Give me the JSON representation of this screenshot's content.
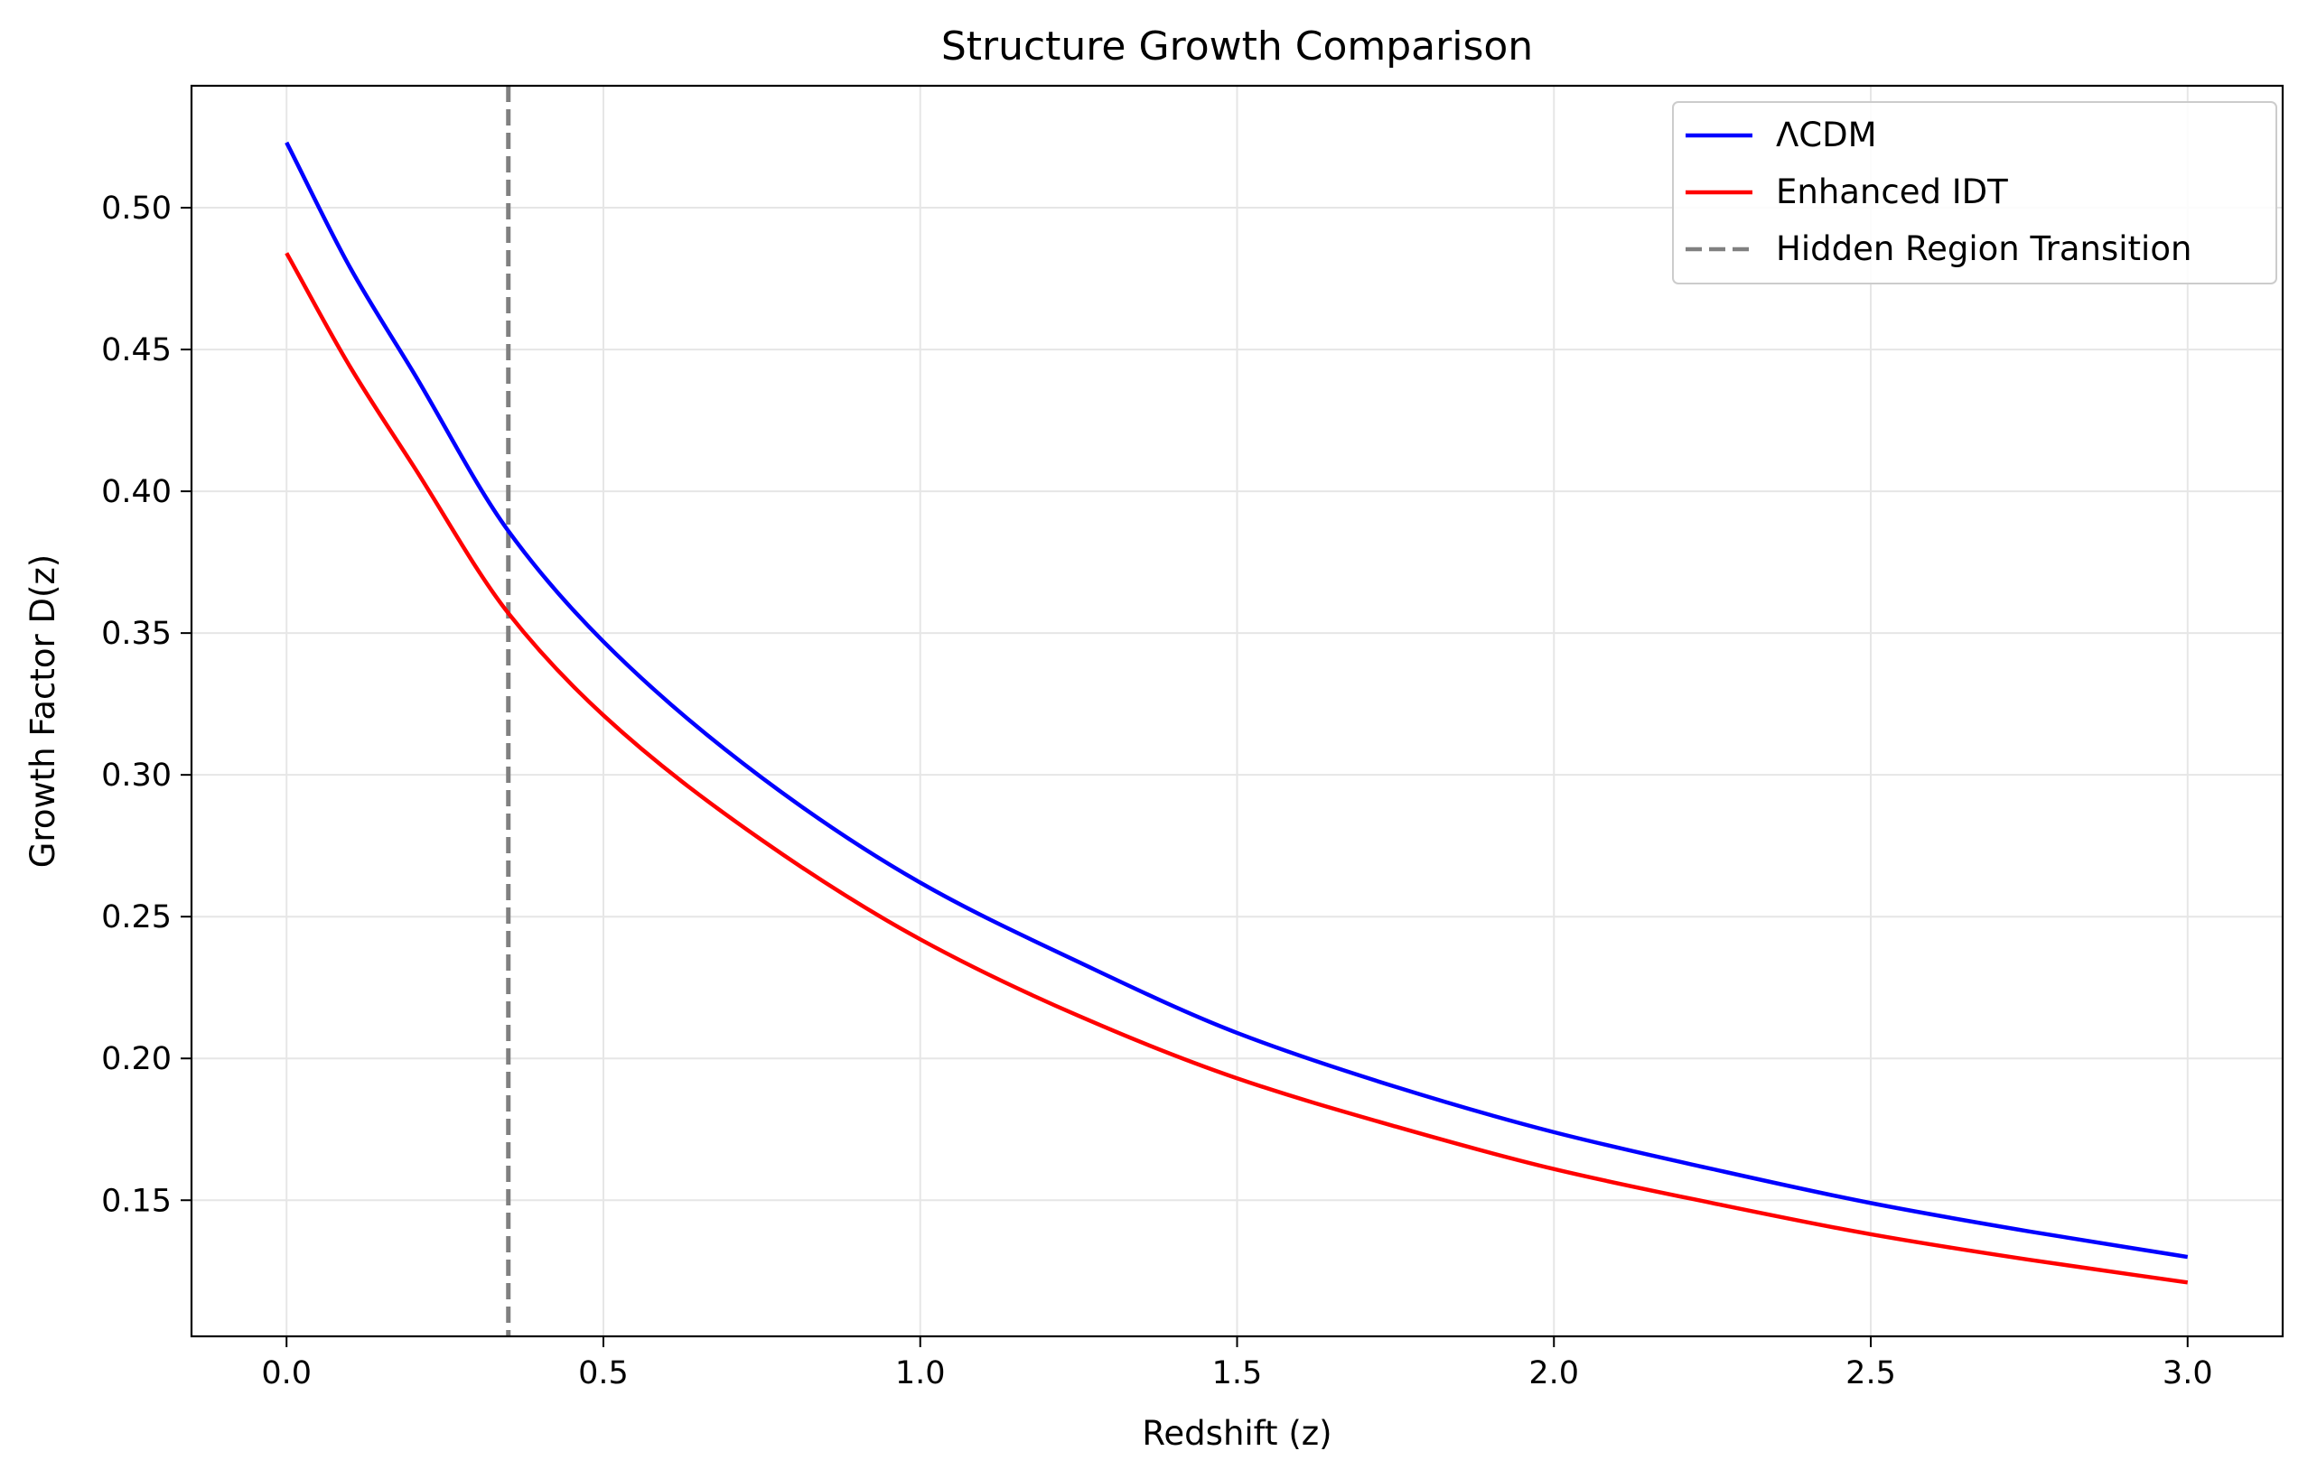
{
  "chart_data": {
    "type": "line",
    "title": "Structure Growth Comparison",
    "xlabel": "Redshift (z)",
    "ylabel": "Growth Factor D(z)",
    "xlim": [
      -0.15,
      3.15
    ],
    "ylim": [
      0.102,
      0.543
    ],
    "xticks": [
      0.0,
      0.5,
      1.0,
      1.5,
      2.0,
      2.5,
      3.0
    ],
    "xtick_labels": [
      "0.0",
      "0.5",
      "1.0",
      "1.5",
      "2.0",
      "2.5",
      "3.0"
    ],
    "yticks": [
      0.15,
      0.2,
      0.25,
      0.3,
      0.35,
      0.4,
      0.45,
      0.5
    ],
    "ytick_labels": [
      "0.15",
      "0.20",
      "0.25",
      "0.30",
      "0.35",
      "0.40",
      "0.45",
      "0.50"
    ],
    "grid": true,
    "legend_position": "top-right",
    "x": [
      0.0,
      0.1,
      0.2,
      0.35,
      0.5,
      0.75,
      1.0,
      1.25,
      1.5,
      1.75,
      2.0,
      2.25,
      2.5,
      2.75,
      3.0
    ],
    "series": [
      {
        "name": "ΛCDM",
        "color": "#0000ff",
        "style": "solid",
        "values": [
          0.523,
          0.479,
          0.442,
          0.386,
          0.347,
          0.299,
          0.262,
          0.234,
          0.209,
          0.19,
          0.174,
          0.161,
          0.149,
          0.139,
          0.13
        ]
      },
      {
        "name": "Enhanced IDT",
        "color": "#ff0000",
        "style": "solid",
        "values": [
          0.484,
          0.444,
          0.409,
          0.357,
          0.321,
          0.277,
          0.242,
          0.215,
          0.193,
          0.176,
          0.161,
          0.149,
          0.138,
          0.129,
          0.121
        ]
      }
    ],
    "vlines": [
      {
        "name": "Hidden Region Transition",
        "x": 0.35,
        "color": "#808080",
        "style": "dashed"
      }
    ],
    "colors": {
      "grid": "#e6e6e6",
      "axes": "#000000",
      "legend_border": "#cccccc"
    }
  }
}
